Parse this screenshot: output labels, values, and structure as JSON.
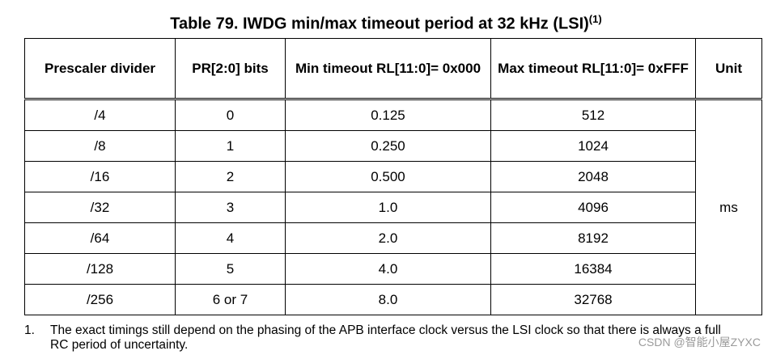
{
  "title": "Table 79. IWDG min/max timeout period at 32 kHz (LSI)",
  "title_note": "(1)",
  "table": {
    "headers": [
      "Prescaler divider",
      "PR[2:0] bits",
      "Min timeout RL[11:0]= 0x000",
      "Max timeout RL[11:0]= 0xFFF",
      "Unit"
    ],
    "rows": [
      [
        "/4",
        "0",
        "0.125",
        "512"
      ],
      [
        "/8",
        "1",
        "0.250",
        "1024"
      ],
      [
        "/16",
        "2",
        "0.500",
        "2048"
      ],
      [
        "/32",
        "3",
        "1.0",
        "4096"
      ],
      [
        "/64",
        "4",
        "2.0",
        "8192"
      ],
      [
        "/128",
        "5",
        "4.0",
        "16384"
      ],
      [
        "/256",
        "6 or 7",
        "8.0",
        "32768"
      ]
    ],
    "unit": "ms"
  },
  "footnote": {
    "number": "1.",
    "text": "The exact timings still depend on the phasing of the APB interface clock versus the LSI clock so that there is always a full RC period of uncertainty."
  },
  "watermark": "CSDN @智能小屋ZYXC"
}
